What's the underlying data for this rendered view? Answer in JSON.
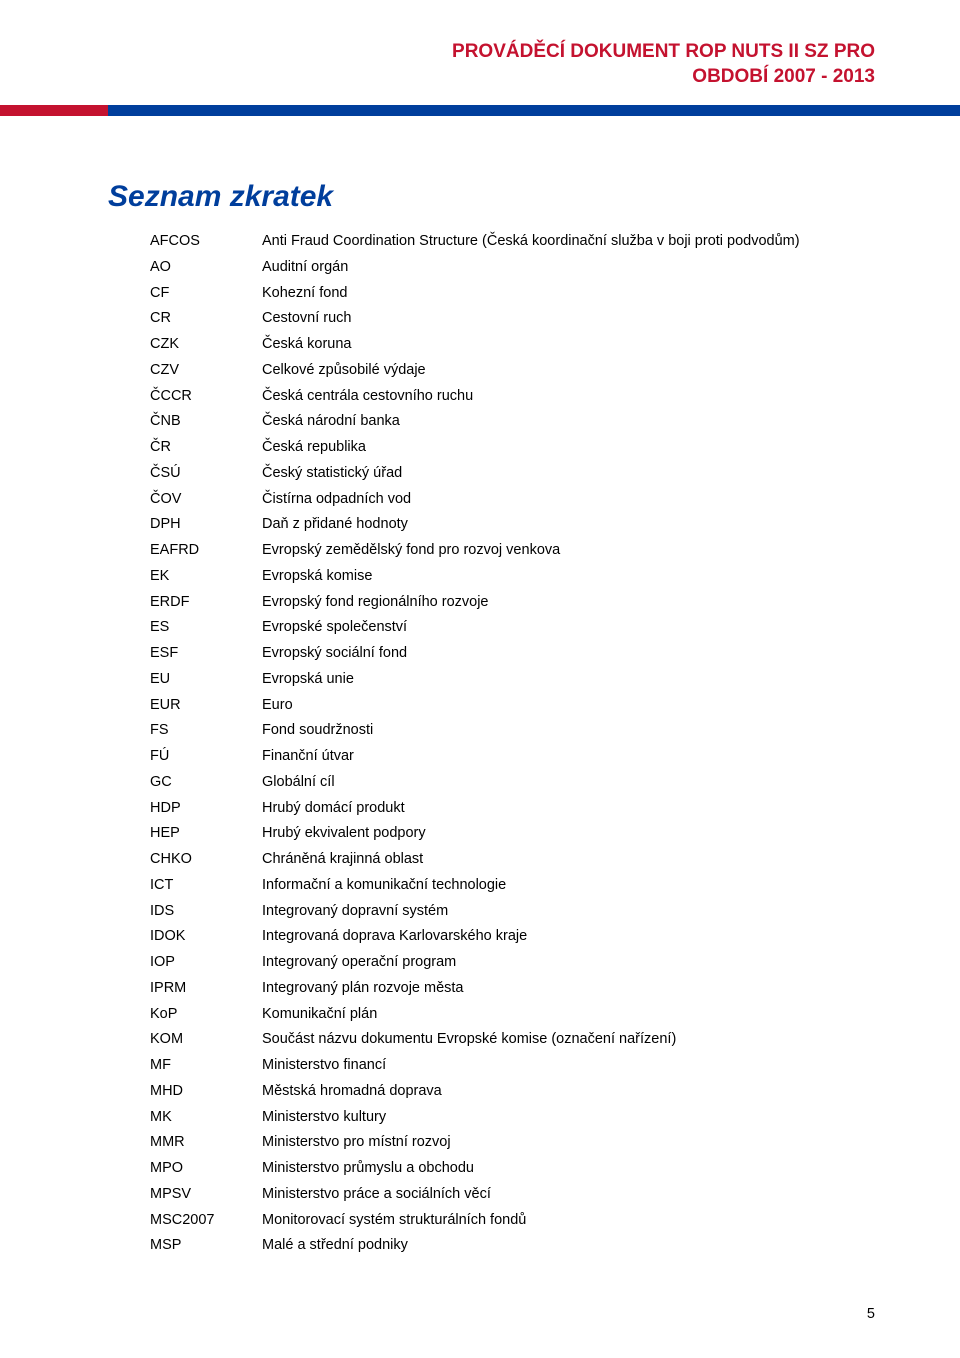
{
  "colors": {
    "header_red": "#c4122f",
    "stripe_blue": "#003e9c",
    "title_blue": "#003e9c",
    "text": "#000000",
    "background": "#ffffff"
  },
  "header": {
    "line1": "PROVÁDĚCÍ DOKUMENT ROP NUTS II SZ PRO",
    "line2": "OBDOBÍ 2007 - 2013"
  },
  "section_title": "Seznam zkratek",
  "abbreviations": [
    {
      "k": "AFCOS",
      "v": "Anti Fraud Coordination Structure (Česká koordinační služba v boji proti podvodům)"
    },
    {
      "k": "AO",
      "v": "Auditní orgán"
    },
    {
      "k": "CF",
      "v": "Kohezní fond"
    },
    {
      "k": "CR",
      "v": "Cestovní ruch"
    },
    {
      "k": "CZK",
      "v": "Česká koruna"
    },
    {
      "k": "CZV",
      "v": "Celkové způsobilé výdaje"
    },
    {
      "k": "ČCCR",
      "v": "Česká centrála cestovního ruchu"
    },
    {
      "k": "ČNB",
      "v": "Česká národní banka"
    },
    {
      "k": "ČR",
      "v": "Česká republika"
    },
    {
      "k": "ČSÚ",
      "v": "Český statistický úřad"
    },
    {
      "k": "ČOV",
      "v": "Čistírna odpadních vod"
    },
    {
      "k": "DPH",
      "v": "Daň z přidané hodnoty"
    },
    {
      "k": "EAFRD",
      "v": "Evropský zemědělský fond pro rozvoj venkova"
    },
    {
      "k": "EK",
      "v": "Evropská komise"
    },
    {
      "k": "ERDF",
      "v": "Evropský fond regionálního rozvoje"
    },
    {
      "k": "ES",
      "v": "Evropské společenství"
    },
    {
      "k": "ESF",
      "v": "Evropský sociální fond"
    },
    {
      "k": "EU",
      "v": "Evropská unie"
    },
    {
      "k": "EUR",
      "v": "Euro"
    },
    {
      "k": "FS",
      "v": "Fond soudržnosti"
    },
    {
      "k": "FÚ",
      "v": "Finanční útvar"
    },
    {
      "k": "GC",
      "v": "Globální cíl"
    },
    {
      "k": "HDP",
      "v": "Hrubý domácí produkt"
    },
    {
      "k": "HEP",
      "v": "Hrubý ekvivalent podpory"
    },
    {
      "k": "CHKO",
      "v": "Chráněná krajinná oblast"
    },
    {
      "k": "ICT",
      "v": "Informační a komunikační technologie"
    },
    {
      "k": "IDS",
      "v": "Integrovaný dopravní systém"
    },
    {
      "k": "IDOK",
      "v": "Integrovaná doprava Karlovarského kraje"
    },
    {
      "k": "IOP",
      "v": "Integrovaný operační program"
    },
    {
      "k": "IPRM",
      "v": "Integrovaný plán rozvoje města"
    },
    {
      "k": "KoP",
      "v": "Komunikační plán"
    },
    {
      "k": "KOM",
      "v": "Součást názvu dokumentu Evropské komise (označení nařízení)"
    },
    {
      "k": "MF",
      "v": "Ministerstvo financí"
    },
    {
      "k": "MHD",
      "v": "Městská hromadná doprava"
    },
    {
      "k": "MK",
      "v": "Ministerstvo kultury"
    },
    {
      "k": "MMR",
      "v": "Ministerstvo pro místní rozvoj"
    },
    {
      "k": "MPO",
      "v": "Ministerstvo průmyslu a obchodu"
    },
    {
      "k": "MPSV",
      "v": "Ministerstvo práce a sociálních věcí"
    },
    {
      "k": "MSC2007",
      "v": "Monitorovací systém strukturálních fondů"
    },
    {
      "k": "MSP",
      "v": "Malé a střední podniky"
    }
  ],
  "page_number": "5"
}
